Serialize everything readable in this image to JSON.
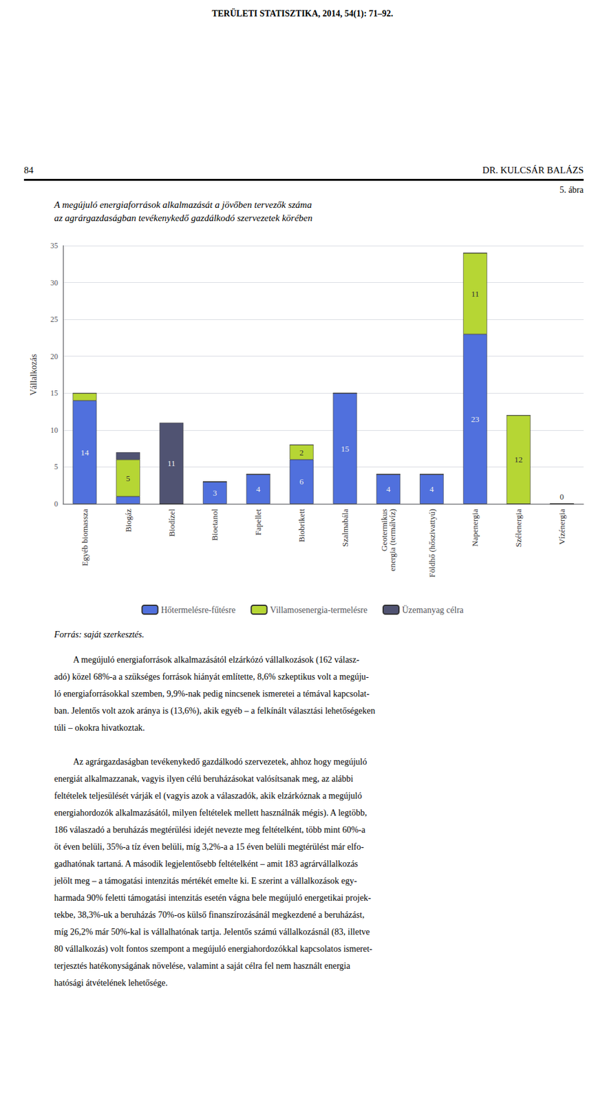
{
  "chart_data": {
    "type": "bar",
    "header": "TERÜLETI STATISZTIKA, 2014, 54(1): 71–92.",
    "page_number": "84",
    "author": "DR. KULCSÁR BALÁZS",
    "figure_label": "5. ábra",
    "title": "A megújuló energiaforrások alkalmazását a jövőben tervezők száma\naz agrárgazdaságban tevékenykedő gazdálkodó szervezetek körében",
    "ylabel": "Vállalkozás",
    "categories": [
      "Egyéb biomassza",
      "Biogáz",
      "Biodízel",
      "Bioetanol",
      "Fapellet",
      "Biobrikett",
      "Szalmabála",
      "Geotermikus\nenergia (termálvíz)",
      "Földhő (hőszivattyú)",
      "Napenergia",
      "Szélenergia",
      "Vízénergia"
    ],
    "series": [
      {
        "name": "Hőtermelésre-fűtésre",
        "values": [
          14,
          1,
          0,
          3,
          4,
          6,
          15,
          4,
          4,
          23,
          0,
          0
        ],
        "value_labels": [
          "14",
          null,
          null,
          "3",
          "4",
          "6",
          "15",
          "4",
          "4",
          "23",
          null,
          "0"
        ]
      },
      {
        "name": "Villamosenergia-termelésre",
        "values": [
          1,
          5,
          0,
          0,
          0,
          2,
          0,
          0,
          0,
          11,
          12,
          0
        ],
        "value_labels": [
          null,
          "5",
          null,
          null,
          null,
          "2",
          null,
          null,
          null,
          "11",
          "12",
          null
        ]
      },
      {
        "name": "Üzemanyag célra",
        "values": [
          0,
          1,
          11,
          0,
          0,
          0,
          0,
          0,
          0,
          0,
          0,
          0
        ],
        "value_labels": [
          null,
          null,
          "11",
          null,
          null,
          null,
          null,
          null,
          null,
          null,
          null,
          null
        ]
      }
    ],
    "stacked": true,
    "data_labels": true,
    "ylim": [
      0,
      35
    ],
    "yticks": [
      0,
      5,
      10,
      15,
      20,
      25,
      30,
      35
    ],
    "grid": true,
    "legend": "bottom",
    "source": "Forrás: saját szerkesztés.",
    "body_text": [
      [
        "A megújuló energiaforrások alkalmazásától elzárkózó vállalkozások (162 válasz-",
        "adó) közel 68%-a a szükséges források hiányát említette, 8,6% szkeptikus volt a megúju-",
        "ló energiaforrásokkal szemben, 9,9%-nak pedig nincsenek ismeretei a témával kapcsolat-",
        "ban. Jelentős volt azok aránya is (13,6%), akik egyéb – a felkínált választási lehetőségeken",
        "túli – okokra hivatkoztak."
      ],
      [
        "Az agrárgazdaságban tevékenykedő gazdálkodó szervezetek, ahhoz hogy megújuló",
        "energiát alkalmazzanak, vagyis ilyen célú beruházásokat valósítsanak meg, az alábbi",
        "feltételek teljesülését várják el (vagyis azok a válaszadók, akik elzárkóznak a megújuló",
        "energiahordozók alkalmazásától, milyen feltételek mellett használnák mégis). A legtöbb,",
        "186 válaszadó a beruházás megtérülési idejét nevezte meg feltételként, több mint 60%-a",
        "öt éven belüli, 35%-a tíz éven belüli, míg 3,2%-a a 15 éven belüli megtérülést már elfo-",
        "gadhatónak tartaná. A második legjelentősebb feltételként – amit 183 agrárvállalkozás",
        "jelölt meg – a támogatási intenzitás mértékét emelte ki. E szerint a vállalkozások egy-",
        "harmada 90% feletti támogatási intenzitás esetén vágna bele megújuló energetikai projek-",
        "tekbe, 38,3%-uk a beruházás 70%-os külső finanszírozásánál megkezdené a beruházást,",
        "míg 26,2% már 50%-kal is vállalhatónak tartja. Jelentős számú vállalkozásnál (83, illetve",
        "80 vállalkozás) volt fontos szempont a megújuló energiahordozókkal kapcsolatos ismeret-",
        "terjesztés hatékonyságának növelése, valamint a saját célra fel nem használt energia",
        "hatósági átvételének lehetősége."
      ]
    ]
  }
}
